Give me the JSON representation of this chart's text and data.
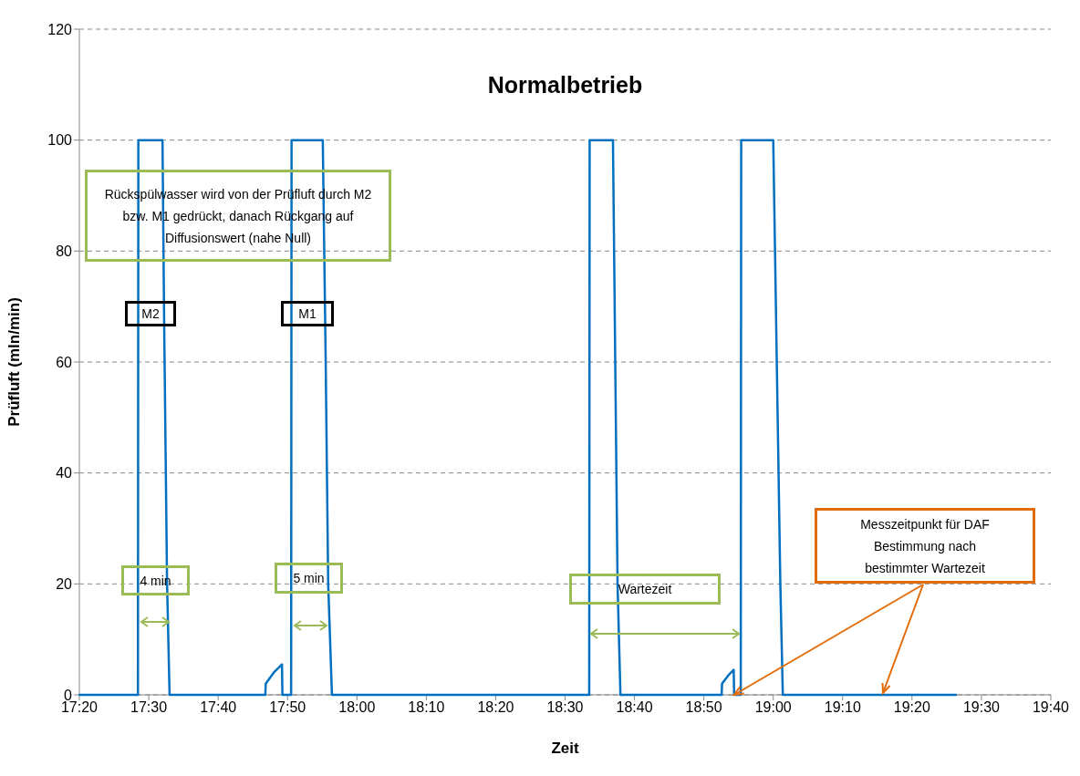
{
  "chart_data": {
    "type": "line",
    "title": "Normalbetrieb",
    "xlabel": "Zeit",
    "ylabel": "Prüfluft (mln/min)",
    "xlim": [
      17.3333,
      19.6667
    ],
    "xticks": [
      {
        "value": 17.3333,
        "label": "17:20"
      },
      {
        "value": 17.5,
        "label": "17:30"
      },
      {
        "value": 17.6667,
        "label": "17:40"
      },
      {
        "value": 17.8333,
        "label": "17:50"
      },
      {
        "value": 18,
        "label": "18:00"
      },
      {
        "value": 18.1667,
        "label": "18:10"
      },
      {
        "value": 18.3333,
        "label": "18:20"
      },
      {
        "value": 18.5,
        "label": "18:30"
      },
      {
        "value": 18.6667,
        "label": "18:40"
      },
      {
        "value": 18.8333,
        "label": "18:50"
      },
      {
        "value": 19,
        "label": "19:00"
      },
      {
        "value": 19.1667,
        "label": "19:10"
      },
      {
        "value": 19.3333,
        "label": "19:20"
      },
      {
        "value": 19.5,
        "label": "19:30"
      },
      {
        "value": 19.6667,
        "label": "19:40"
      }
    ],
    "ylim": [
      0,
      120
    ],
    "yticks": [
      0,
      20,
      40,
      60,
      80,
      100,
      120
    ],
    "grid": "y",
    "marker": "none",
    "line_style": "solid",
    "series": [
      {
        "color": "#0070c0",
        "x": [
          17.334,
          17.474,
          17.475,
          17.533,
          17.537,
          17.544,
          17.55,
          17.78,
          17.781,
          17.8,
          17.82,
          17.821,
          17.842,
          17.843,
          17.918,
          17.925,
          17.931,
          17.94,
          18.558,
          18.559,
          18.615,
          18.626,
          18.633,
          18.876,
          18.877,
          18.892,
          18.905,
          18.906,
          18.922,
          18.923,
          19.0,
          19.017,
          19.023,
          19.439
        ],
        "values": [
          0,
          0,
          100,
          100,
          67,
          20,
          0,
          0,
          2,
          4,
          5.5,
          0,
          0,
          100,
          100,
          60,
          20,
          0,
          0,
          100,
          100,
          20,
          0,
          0,
          2,
          3.5,
          4.5,
          0,
          0,
          100,
          100,
          20,
          0,
          0
        ]
      }
    ],
    "annotations": [
      "Rückspülwasser wird von der Prüfluft durch M2 bzw. M1 gedrückt, danach Rückgang auf Diffusionswert (nahe Null)",
      "M2",
      "M1",
      "4 min",
      "5 min",
      "Wartezeit",
      {
        "text": "Messzeitpunkt für DAF Bestimmung nach bestimmter Wartezeit",
        "x": 18.906,
        "y": 0
      }
    ]
  }
}
